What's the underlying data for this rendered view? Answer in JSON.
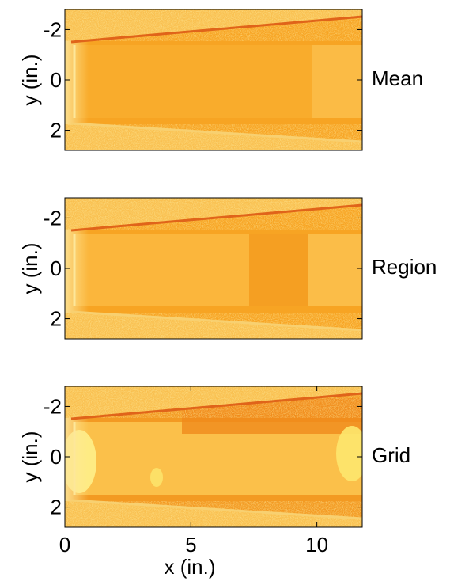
{
  "chart_data": [
    {
      "type": "image",
      "label": "Mean",
      "y_label": "y (in.)",
      "xlim": [
        0,
        11.8
      ],
      "ylim": [
        -2.8,
        2.8
      ],
      "yticks": [
        -2,
        0,
        2
      ],
      "y_reversed": true
    },
    {
      "type": "image",
      "label": "Region",
      "y_label": "y (in.)",
      "xlim": [
        0,
        11.8
      ],
      "ylim": [
        -2.8,
        2.8
      ],
      "yticks": [
        -2,
        0,
        2
      ],
      "y_reversed": true
    },
    {
      "type": "image",
      "label": "Grid",
      "y_label": "y (in.)",
      "x_label": "x (in.)",
      "xlim": [
        0,
        11.8
      ],
      "xticks": [
        0,
        5,
        10
      ],
      "ylim": [
        -2.8,
        2.8
      ],
      "yticks": [
        -2,
        0,
        2
      ],
      "y_reversed": true
    }
  ]
}
